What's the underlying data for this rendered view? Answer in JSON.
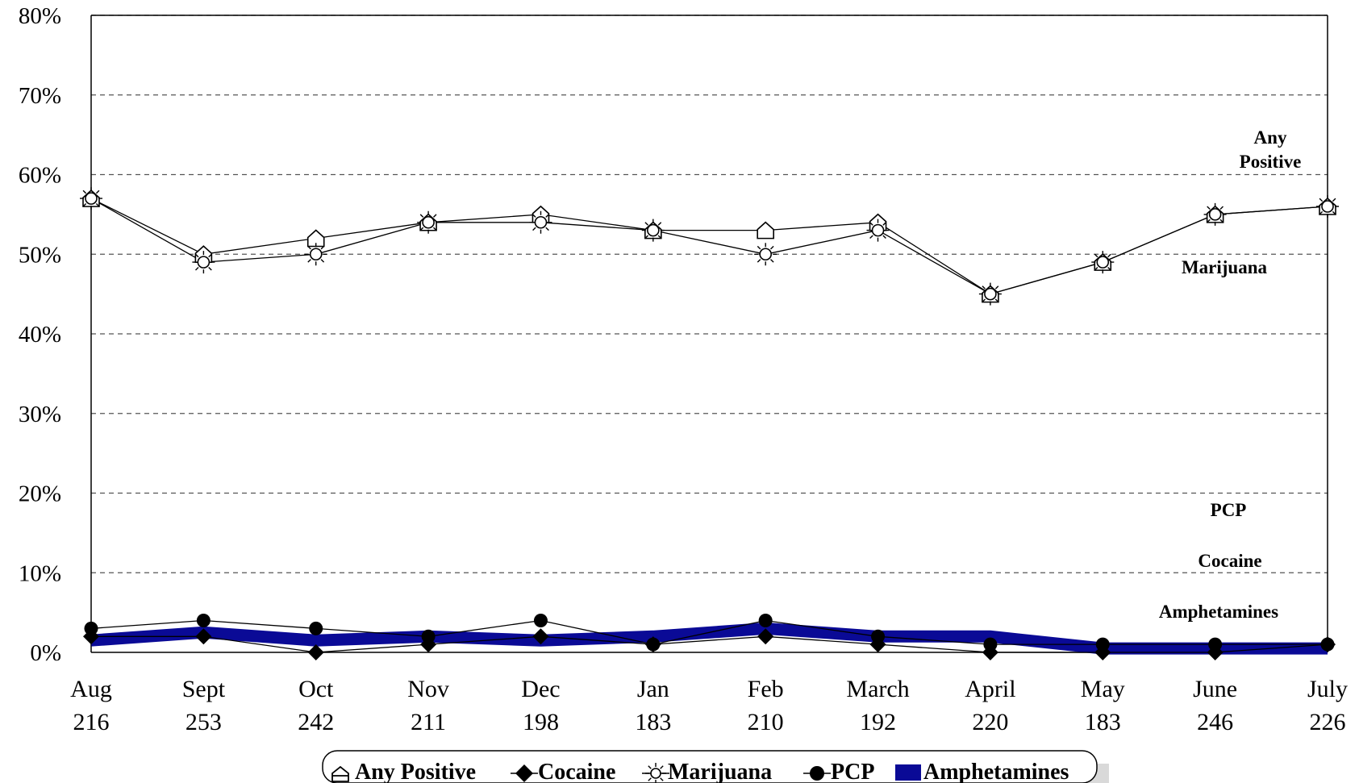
{
  "chart_data": {
    "type": "line",
    "title": "",
    "xlabel": "",
    "ylabel": "",
    "ylim": [
      0,
      80
    ],
    "y_ticks": [
      "0%",
      "10%",
      "20%",
      "30%",
      "40%",
      "50%",
      "60%",
      "70%",
      "80%"
    ],
    "grid": true,
    "legend_position": "bottom",
    "categories": [
      {
        "month": "Aug",
        "n": "216"
      },
      {
        "month": "Sept",
        "n": "253"
      },
      {
        "month": "Oct",
        "n": "242"
      },
      {
        "month": "Nov",
        "n": "211"
      },
      {
        "month": "Dec",
        "n": "198"
      },
      {
        "month": "Jan",
        "n": "183"
      },
      {
        "month": "Feb",
        "n": "210"
      },
      {
        "month": "March",
        "n": "192"
      },
      {
        "month": "April",
        "n": "220"
      },
      {
        "month": "May",
        "n": "183"
      },
      {
        "month": "June",
        "n": "246"
      },
      {
        "month": "July",
        "n": "226"
      }
    ],
    "series": [
      {
        "name": "Any Positive",
        "marker": "house-icon",
        "values": [
          57,
          50,
          52,
          54,
          55,
          53,
          53,
          54,
          45,
          49,
          55,
          56
        ]
      },
      {
        "name": "Cocaine",
        "marker": "diamond-icon",
        "values": [
          2,
          2,
          0,
          1,
          2,
          1,
          2,
          1,
          0,
          0,
          0,
          1
        ]
      },
      {
        "name": "Marijuana",
        "marker": "sun-icon",
        "values": [
          57,
          49,
          50,
          54,
          54,
          53,
          50,
          53,
          45,
          49,
          55,
          56
        ]
      },
      {
        "name": "PCP",
        "marker": "circle-icon",
        "values": [
          3,
          4,
          3,
          2,
          4,
          1,
          4,
          2,
          1,
          1,
          1,
          1
        ]
      },
      {
        "name": "Amphetamines",
        "marker": "band",
        "color": "#0a0a96",
        "values": [
          1.5,
          2.5,
          1.5,
          2,
          1.5,
          2,
          3,
          2,
          2,
          0.5,
          0.5,
          0.5
        ]
      }
    ],
    "annotations": [
      {
        "text": "Any",
        "series": "Any Positive"
      },
      {
        "text": "Positive",
        "series": "Any Positive"
      },
      {
        "text": "Marijuana",
        "series": "Marijuana"
      },
      {
        "text": "PCP",
        "series": "PCP"
      },
      {
        "text": "Cocaine",
        "series": "Cocaine"
      },
      {
        "text": "Amphetamines",
        "series": "Amphetamines"
      }
    ]
  }
}
